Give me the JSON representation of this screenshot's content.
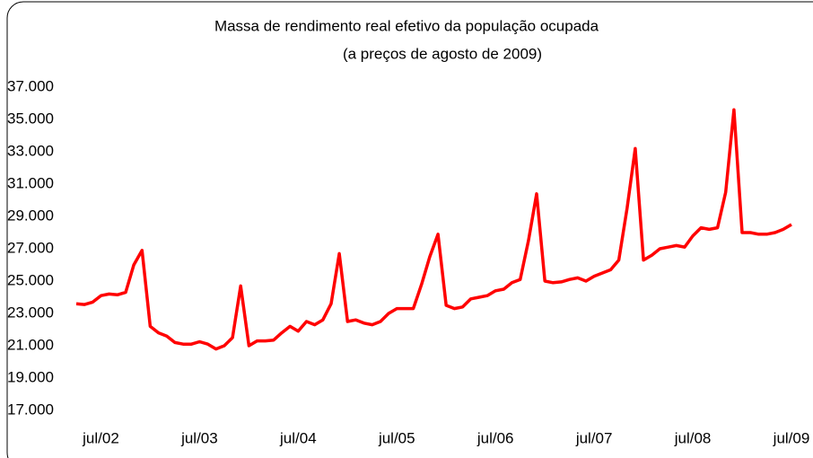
{
  "chart_data": {
    "type": "line",
    "title": "Massa de rendimento real efetivo da população ocupada",
    "subtitle": "(a preços de agosto de 2009)",
    "categories": [
      null,
      null,
      null,
      "jul/02",
      null,
      null,
      null,
      null,
      null,
      null,
      null,
      null,
      null,
      null,
      null,
      "jul/03",
      null,
      null,
      null,
      null,
      null,
      null,
      null,
      null,
      null,
      null,
      null,
      "jul/04",
      null,
      null,
      null,
      null,
      null,
      null,
      null,
      null,
      null,
      null,
      null,
      "jul/05",
      null,
      null,
      null,
      null,
      null,
      null,
      null,
      null,
      null,
      null,
      null,
      "jul/06",
      null,
      null,
      null,
      null,
      null,
      null,
      null,
      null,
      null,
      null,
      null,
      "jul/07",
      null,
      null,
      null,
      null,
      null,
      null,
      null,
      null,
      null,
      null,
      null,
      "jul/08",
      null,
      null,
      null,
      null,
      null,
      null,
      null,
      null,
      null,
      null,
      null,
      "jul/09"
    ],
    "series": [
      {
        "color": "#ff0000",
        "values": [
          23600,
          23550,
          23700,
          24100,
          24200,
          24150,
          24300,
          26000,
          26900,
          22200,
          21800,
          21600,
          21200,
          21100,
          21100,
          21250,
          21100,
          20800,
          21000,
          21500,
          24700,
          21000,
          21300,
          21300,
          21350,
          21800,
          22200,
          21900,
          22500,
          22300,
          22600,
          23600,
          26700,
          22500,
          22600,
          22400,
          22300,
          22500,
          23000,
          23300,
          23300,
          23300,
          24800,
          26500,
          27900,
          23500,
          23300,
          23400,
          23900,
          24000,
          24100,
          24400,
          24500,
          24900,
          25100,
          27500,
          30400,
          25000,
          24900,
          24950,
          25100,
          25200,
          25000,
          25300,
          25500,
          25700,
          26300,
          29500,
          33200,
          26300,
          26600,
          27000,
          27100,
          27200,
          27100,
          27800,
          28300,
          28200,
          28300,
          30500,
          35600,
          28000,
          28000,
          27900,
          27900,
          28000,
          28200,
          28500
        ]
      }
    ],
    "ylim": [
      17000,
      37000
    ],
    "yticks": [
      {
        "value": 17000,
        "label": "17.000"
      },
      {
        "value": 19000,
        "label": "19.000"
      },
      {
        "value": 21000,
        "label": "21.000"
      },
      {
        "value": 23000,
        "label": "23.000"
      },
      {
        "value": 25000,
        "label": "25.000"
      },
      {
        "value": 27000,
        "label": "27.000"
      },
      {
        "value": 29000,
        "label": "29.000"
      },
      {
        "value": 31000,
        "label": "31.000"
      },
      {
        "value": 33000,
        "label": "33.000"
      },
      {
        "value": 35000,
        "label": "35.000"
      },
      {
        "value": 37000,
        "label": "37.000"
      }
    ]
  }
}
